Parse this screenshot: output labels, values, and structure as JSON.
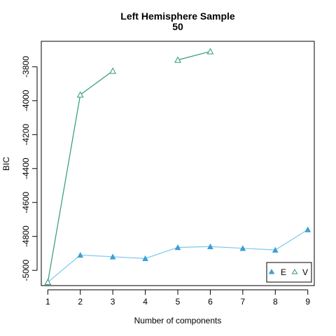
{
  "chart_data": {
    "type": "line",
    "title": "Left Hemisphere Sample",
    "subtitle": "50",
    "xlabel": "Number of components",
    "ylabel": "BIC",
    "x": [
      1,
      2,
      3,
      4,
      5,
      6,
      7,
      8,
      9
    ],
    "xlim": [
      0.8,
      9.2
    ],
    "ylim": [
      -5090,
      -3650
    ],
    "xticks": [
      "1",
      "2",
      "3",
      "4",
      "5",
      "6",
      "7",
      "8",
      "9"
    ],
    "yticks": [
      "-5000",
      "-4800",
      "-4600",
      "-4400",
      "-4200",
      "-4000",
      "-3800"
    ],
    "grid": false,
    "legend_position": "bottom-right",
    "series": [
      {
        "name": "E",
        "marker": "filled-triangle",
        "color": "#3d9fd6",
        "line_color": "#7ec8ec",
        "values": [
          -5070,
          -4910,
          -4920,
          -4930,
          -4865,
          -4860,
          -4870,
          -4880,
          -4760
        ]
      },
      {
        "name": "V",
        "marker": "open-triangle",
        "color": "#2e9a78",
        "line_color": "#2e9a78",
        "values": [
          -5070,
          -3965,
          -3825,
          null,
          -3760,
          -3710,
          null,
          null,
          null
        ]
      }
    ]
  }
}
